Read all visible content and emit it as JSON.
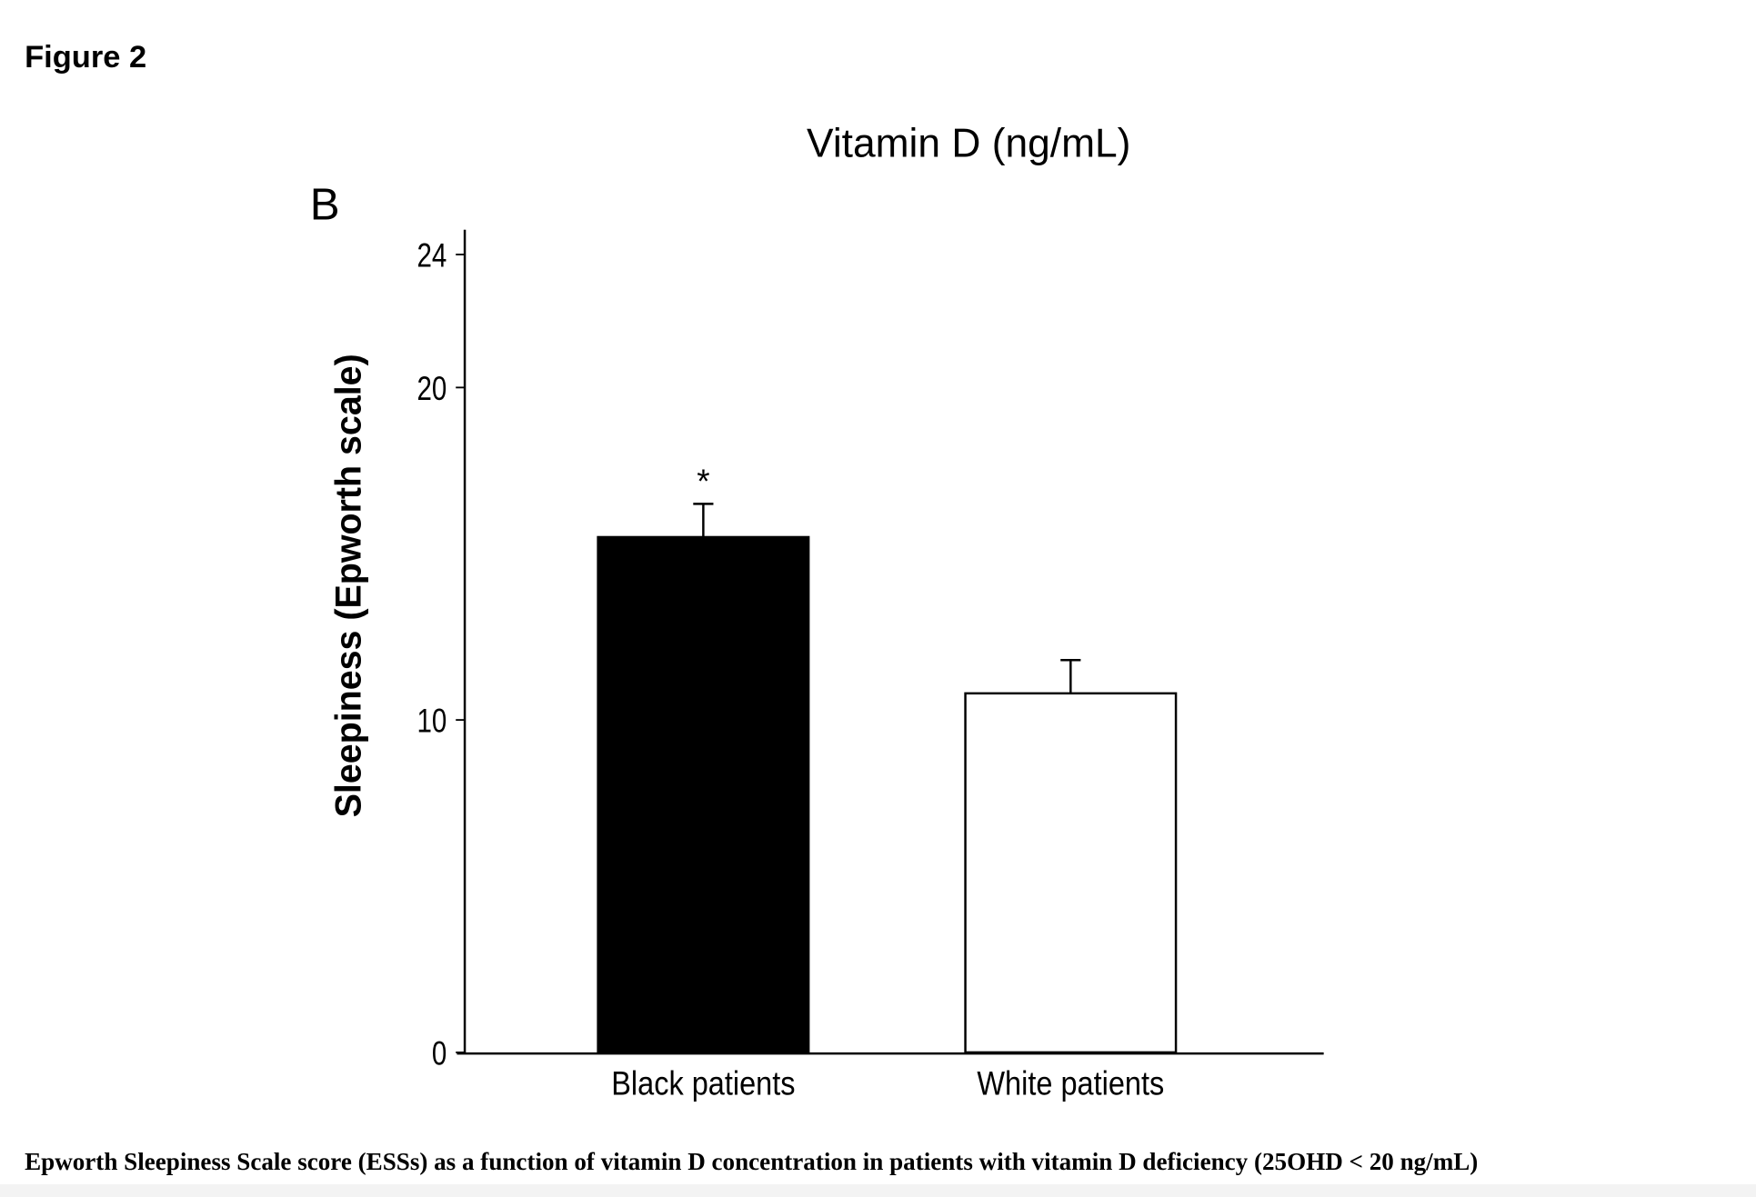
{
  "figure_label": "Figure 2",
  "panel_label": "B",
  "caption": "Epworth Sleepiness Scale score (ESSs) as a function of vitamin D concentration in patients with vitamin D deficiency (25OHD < 20 ng/mL)",
  "chart_data": {
    "type": "bar",
    "title": "Vitamin D (ng/mL)",
    "xlabel": "",
    "ylabel": "Sleepiness (Epworth scale)",
    "categories": [
      "Black patients",
      "White patients"
    ],
    "values": [
      15.5,
      10.8
    ],
    "errors": [
      1.0,
      1.0
    ],
    "fills": [
      "#000000",
      "#ffffff"
    ],
    "annotations": [
      "*",
      ""
    ],
    "yticks": [
      0,
      10,
      20,
      24
    ],
    "ylim": [
      0,
      24
    ],
    "grid": false
  }
}
